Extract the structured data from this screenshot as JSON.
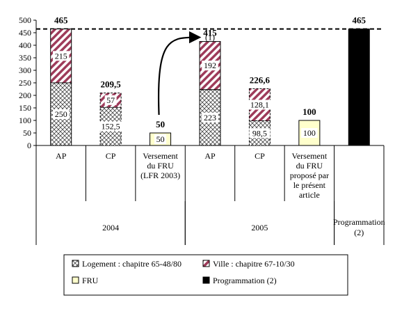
{
  "chart_data": {
    "type": "bar",
    "stacked": true,
    "ylim": [
      0,
      500
    ],
    "yticks": [
      0,
      50,
      100,
      150,
      200,
      250,
      300,
      350,
      400,
      450,
      500
    ],
    "reference_line": {
      "value": 465,
      "style": "dashed"
    },
    "categories": [
      {
        "label": [
          "AP"
        ],
        "group": "2004",
        "total_label": "465",
        "segments": [
          {
            "series": "logement",
            "value": 250,
            "label": "250"
          },
          {
            "series": "ville",
            "value": 215,
            "label": "215"
          }
        ]
      },
      {
        "label": [
          "CP"
        ],
        "group": "2004",
        "total_label": "209,5",
        "segments": [
          {
            "series": "logement",
            "value": 152.5,
            "label": "152,5"
          },
          {
            "series": "ville",
            "value": 57,
            "label": "57"
          }
        ]
      },
      {
        "label": [
          "Versement",
          "du FRU",
          "(LFR 2003)"
        ],
        "group": "2004",
        "total_label": "50",
        "segments": [
          {
            "series": "fru",
            "value": 50,
            "label": "50"
          }
        ]
      },
      {
        "label": [
          "AP"
        ],
        "group": "2005",
        "total_label": "415",
        "segments": [
          {
            "series": "logement",
            "value": 223,
            "label": "223"
          },
          {
            "series": "ville",
            "value": 192,
            "label": "192"
          }
        ]
      },
      {
        "label": [
          "CP"
        ],
        "group": "2005",
        "total_label": "226,6",
        "segments": [
          {
            "series": "logement",
            "value": 98.5,
            "label": "98,5"
          },
          {
            "series": "ville",
            "value": 128.1,
            "label": "128,1"
          }
        ]
      },
      {
        "label": [
          "Versement",
          "du FRU",
          "proposé par",
          "le présent",
          "article"
        ],
        "group": "2005",
        "total_label": "100",
        "segments": [
          {
            "series": "fru",
            "value": 100,
            "label": "100"
          }
        ]
      },
      {
        "label": [],
        "group": "programmation",
        "total_label": "465",
        "segments": [
          {
            "series": "programmation",
            "value": 465,
            "label": ""
          }
        ]
      }
    ],
    "groups": [
      {
        "id": "2004",
        "label": [
          "2004"
        ]
      },
      {
        "id": "2005",
        "label": [
          "2005"
        ]
      },
      {
        "id": "programmation",
        "label": [
          "Programmation",
          "(2)"
        ]
      }
    ],
    "annotation": {
      "text": "(1)",
      "arrow_from": 2,
      "arrow_to": 3
    },
    "series": [
      {
        "id": "logement",
        "name": "Logement : chapitre 65-48/80",
        "color": "#ffffff",
        "pattern": "crosshatch"
      },
      {
        "id": "ville",
        "name": "Ville : chapitre 67-10/30",
        "color": "#9e3b5a",
        "pattern": "diagonal"
      },
      {
        "id": "fru",
        "name": "FRU",
        "color": "#ffffcc",
        "pattern": "solid"
      },
      {
        "id": "programmation",
        "name": "Programmation (2)",
        "color": "#000000",
        "pattern": "solid"
      }
    ],
    "legend_position": "bottom"
  }
}
